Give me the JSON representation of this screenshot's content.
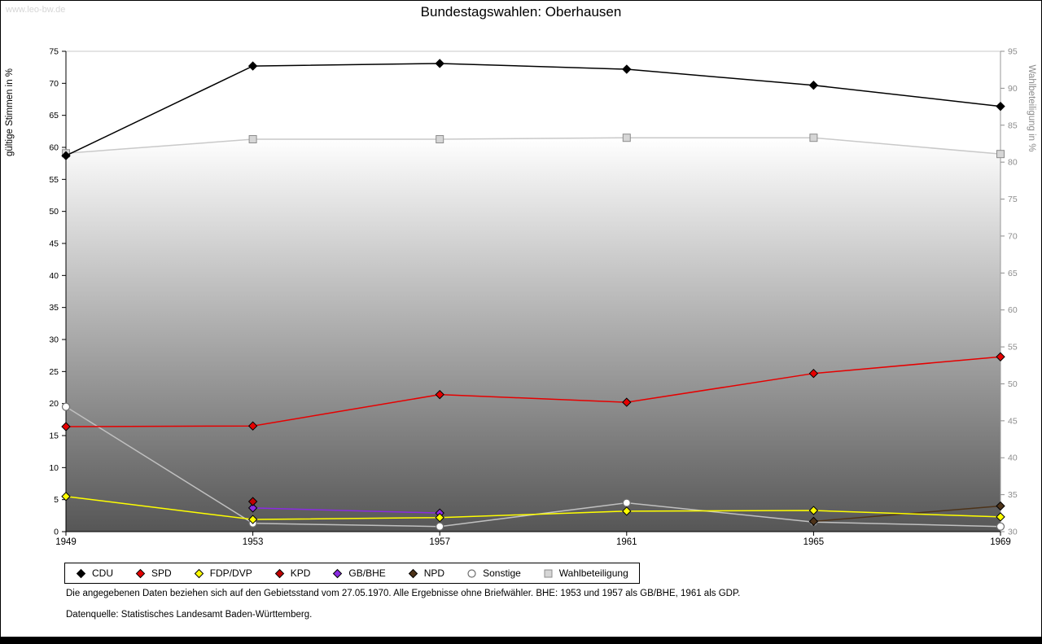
{
  "watermark": "www.leo-bw.de",
  "title": "Bundestagswahlen: Oberhausen",
  "footnotes": {
    "line1": "Die angegebenen Daten beziehen sich auf den Gebietsstand vom 27.05.1970. Alle Ergebnisse ohne Briefwähler. BHE: 1953 und 1957 als GB/BHE, 1961 als GDP.",
    "line2": "Datenquelle: Statistisches Landesamt Baden-Württemberg."
  },
  "chart_data": {
    "type": "line",
    "title": "Bundestagswahlen: Oberhausen",
    "x_labels": [
      "1949",
      "1953",
      "1957",
      "1961",
      "1965",
      "1969"
    ],
    "left_axis": {
      "label": "gültige Stimmen in %",
      "min": 0,
      "max": 75,
      "step": 5
    },
    "right_axis": {
      "label": "Wahlbeteiligung in %",
      "min": 30,
      "max": 95,
      "step": 5
    },
    "grid": false,
    "legend_position": "bottom-left",
    "series": [
      {
        "name": "CDU",
        "axis": "left",
        "color": "#000000",
        "marker": "diamond",
        "values": [
          58.7,
          72.7,
          73.1,
          72.2,
          69.7,
          66.4
        ]
      },
      {
        "name": "SPD",
        "axis": "left",
        "color": "#e60000",
        "marker": "diamond",
        "values": [
          16.4,
          16.5,
          21.4,
          20.2,
          24.7,
          27.3
        ]
      },
      {
        "name": "FDP/DVP",
        "axis": "left",
        "color": "#ffff00",
        "marker": "diamond",
        "values": [
          5.5,
          1.9,
          2.2,
          3.2,
          3.3,
          2.3
        ]
      },
      {
        "name": "KPD",
        "axis": "left",
        "color": "#c00000",
        "marker": "diamond",
        "values": [
          null,
          4.7,
          null,
          null,
          null,
          null
        ]
      },
      {
        "name": "GB/BHE",
        "axis": "left",
        "color": "#8a2be2",
        "marker": "diamond",
        "values": [
          null,
          3.7,
          2.9,
          null,
          null,
          null
        ]
      },
      {
        "name": "NPD",
        "axis": "left",
        "color": "#4d3319",
        "marker": "diamond",
        "values": [
          null,
          null,
          null,
          null,
          1.6,
          4.0
        ]
      },
      {
        "name": "Sonstige",
        "axis": "left",
        "color": "#c0c0c0",
        "marker": "circle",
        "marker_fill": "#ffffff",
        "marker_stroke": "#6e6e6e",
        "values": [
          19.5,
          1.3,
          0.8,
          4.5,
          1.5,
          0.8
        ]
      },
      {
        "name": "Wahlbeteiligung",
        "axis": "right",
        "color": "#c9c9c9",
        "marker": "square",
        "marker_fill": "#d6d6d6",
        "marker_stroke": "#8c8c8c",
        "area_gradient": [
          "#ffffff",
          "#565656"
        ],
        "values": [
          81.2,
          83.1,
          83.1,
          83.3,
          83.3,
          81.1
        ]
      }
    ]
  }
}
